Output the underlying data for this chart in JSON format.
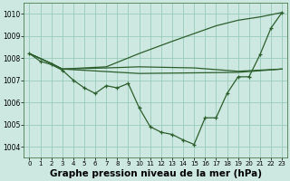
{
  "background_color": "#cce8e0",
  "grid_color": "#99ccbb",
  "line_color": "#2d5e2d",
  "xlabel": "Graphe pression niveau de la mer (hPa)",
  "xlabel_fontsize": 7.5,
  "yticks": [
    1004,
    1005,
    1006,
    1007,
    1008,
    1009,
    1010
  ],
  "xticks": [
    0,
    1,
    2,
    3,
    4,
    5,
    6,
    7,
    8,
    9,
    10,
    11,
    12,
    13,
    14,
    15,
    16,
    17,
    18,
    19,
    20,
    21,
    22,
    23
  ],
  "xlim": [
    -0.5,
    23.5
  ],
  "ylim": [
    1003.5,
    1010.5
  ],
  "line_marked": {
    "x": [
      0,
      1,
      2,
      3,
      4,
      5,
      6,
      7,
      8,
      9,
      10,
      11,
      12,
      13,
      14,
      15,
      16,
      17,
      18,
      19,
      20,
      21,
      22,
      23
    ],
    "y": [
      1008.2,
      1007.85,
      1007.7,
      1007.45,
      1007.0,
      1006.65,
      1006.4,
      1006.75,
      1006.65,
      1006.85,
      1005.75,
      1004.9,
      1004.65,
      1004.55,
      1004.3,
      1004.1,
      1005.3,
      1005.3,
      1006.4,
      1007.15,
      1007.15,
      1008.15,
      1009.35,
      1010.05
    ]
  },
  "line_flat": {
    "x": [
      0,
      2,
      3,
      10,
      19,
      23
    ],
    "y": [
      1008.2,
      1007.75,
      1007.5,
      1007.3,
      1007.35,
      1007.5
    ]
  },
  "line_up": {
    "x": [
      0,
      2,
      3,
      7,
      10,
      13,
      15,
      17,
      19,
      21,
      22,
      23
    ],
    "y": [
      1008.2,
      1007.75,
      1007.5,
      1007.6,
      1008.2,
      1008.75,
      1009.1,
      1009.45,
      1009.7,
      1009.85,
      1009.95,
      1010.05
    ]
  },
  "line_mid": {
    "x": [
      0,
      2,
      3,
      7,
      10,
      15,
      19,
      23
    ],
    "y": [
      1008.2,
      1007.75,
      1007.5,
      1007.55,
      1007.6,
      1007.55,
      1007.4,
      1007.5
    ]
  }
}
